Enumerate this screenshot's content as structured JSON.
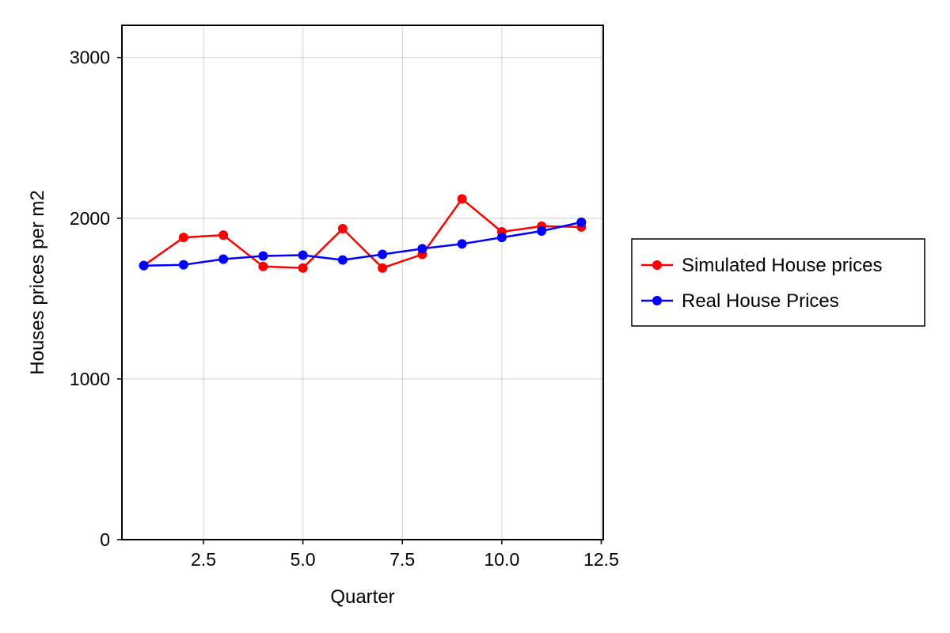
{
  "chart_data": {
    "type": "line",
    "title": "",
    "xlabel": "Quarter",
    "ylabel": "Houses prices per m2",
    "xlim": [
      0.45,
      12.55
    ],
    "ylim": [
      0,
      3200
    ],
    "xticks": [
      2.5,
      5.0,
      7.5,
      10.0,
      12.5
    ],
    "xtick_labels": [
      "2.5",
      "5.0",
      "7.5",
      "10.0",
      "12.5"
    ],
    "yticks": [
      0,
      1000,
      2000,
      3000
    ],
    "ytick_labels": [
      "0",
      "1000",
      "2000",
      "3000"
    ],
    "grid": true,
    "legend_position": "right",
    "series": [
      {
        "name": "Simulated House prices",
        "color": "#ff0000",
        "x": [
          1,
          2,
          3,
          4,
          5,
          6,
          7,
          8,
          9,
          10,
          11,
          12
        ],
        "y": [
          1705,
          1880,
          1895,
          1700,
          1690,
          1935,
          1690,
          1775,
          2120,
          1915,
          1950,
          1945
        ]
      },
      {
        "name": "Real House Prices",
        "color": "#0000ff",
        "x": [
          1,
          2,
          3,
          4,
          5,
          6,
          7,
          8,
          9,
          10,
          11,
          12
        ],
        "y": [
          1705,
          1710,
          1745,
          1765,
          1770,
          1740,
          1775,
          1810,
          1840,
          1880,
          1920,
          1975
        ]
      }
    ]
  }
}
